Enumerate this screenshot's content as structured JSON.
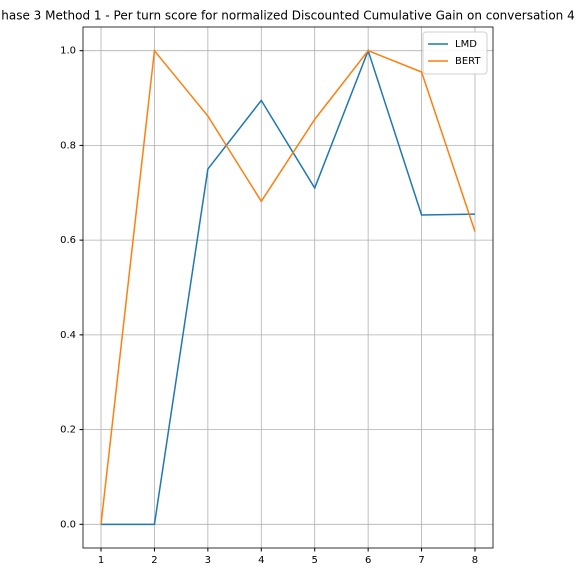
{
  "chart_data": {
    "type": "line",
    "title": "hase 3 Method 1 - Per turn score for normalized Discounted Cumulative Gain on conversation 4",
    "x": [
      1,
      2,
      3,
      4,
      5,
      6,
      7,
      8
    ],
    "series": [
      {
        "name": "LMD",
        "color": "#1f77b4",
        "values": [
          0,
          0,
          0.75,
          0.895,
          0.71,
          1.0,
          0.653,
          0.655
        ]
      },
      {
        "name": "BERT",
        "color": "#ff7f0e",
        "values": [
          0,
          1.0,
          0.862,
          0.682,
          0.855,
          1.0,
          0.955,
          0.618
        ]
      }
    ],
    "xlim": [
      0.663,
      8.337
    ],
    "xticks": [
      1,
      2,
      3,
      4,
      5,
      6,
      7,
      8
    ],
    "ylim": [
      -0.05,
      1.05
    ],
    "yticks": [
      {
        "value": 0,
        "label": "0.0"
      },
      0.2,
      0.4,
      0.6,
      0.8,
      {
        "value": 1,
        "label": "1.0"
      }
    ],
    "grid": true,
    "legend": "upper right"
  }
}
